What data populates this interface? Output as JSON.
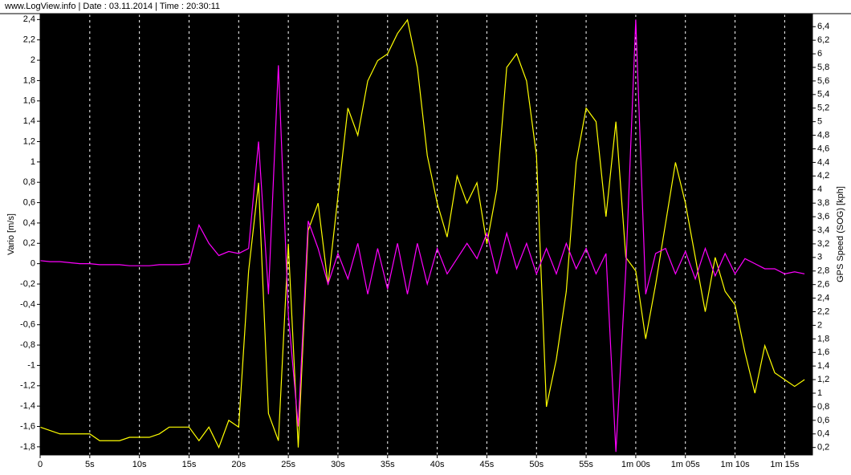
{
  "chart_data": {
    "type": "line",
    "title": "www.LogView.info  |  Date : 03.11.2014  |  Time : 20:30:11",
    "ylabel": "Vario [m/s]",
    "y2label": "GPS Speed (SOG) [kph]",
    "grid": true,
    "x": [
      0,
      1,
      2,
      3,
      4,
      5,
      6,
      7,
      8,
      9,
      10,
      11,
      12,
      13,
      14,
      15,
      16,
      17,
      18,
      19,
      20,
      21,
      22,
      23,
      24,
      25,
      26,
      27,
      28,
      29,
      30,
      31,
      32,
      33,
      34,
      35,
      36,
      37,
      38,
      39,
      40,
      41,
      42,
      43,
      44,
      45,
      46,
      47,
      48,
      49,
      50,
      51,
      52,
      53,
      54,
      55,
      56,
      57,
      58,
      59,
      60,
      61,
      62,
      63,
      64,
      65,
      66,
      67,
      68,
      69,
      70,
      71,
      72,
      73,
      74,
      75,
      76,
      77
    ],
    "xlim": [
      0,
      77.8
    ],
    "xticks": [
      0,
      {
        "value": 5,
        "label": "5s"
      },
      {
        "value": 10,
        "label": "10s"
      },
      {
        "value": 15,
        "label": "15s"
      },
      {
        "value": 20,
        "label": "20s"
      },
      {
        "value": 25,
        "label": "25s"
      },
      {
        "value": 30,
        "label": "30s"
      },
      {
        "value": 35,
        "label": "35s"
      },
      {
        "value": 40,
        "label": "40s"
      },
      {
        "value": 45,
        "label": "45s"
      },
      {
        "value": 50,
        "label": "50s"
      },
      {
        "value": 55,
        "label": "55s"
      },
      {
        "value": 60,
        "label": "1m 00s"
      },
      {
        "value": 65,
        "label": "1m 05s"
      },
      {
        "value": 70,
        "label": "1m 10s"
      },
      {
        "value": 75,
        "label": "1m 15s"
      }
    ],
    "ylim": [
      -1.88,
      2.45
    ],
    "yticks": [
      {
        "value": 2.4,
        "label": "2,4"
      },
      {
        "value": 2.2,
        "label": "2,2"
      },
      2,
      {
        "value": 1.8,
        "label": "1,8"
      },
      {
        "value": 1.6,
        "label": "1,6"
      },
      {
        "value": 1.4,
        "label": "1,4"
      },
      {
        "value": 1.2,
        "label": "1,2"
      },
      1,
      {
        "value": 0.8,
        "label": "0,8"
      },
      {
        "value": 0.6,
        "label": "0,6"
      },
      {
        "value": 0.4,
        "label": "0,4"
      },
      {
        "value": 0.2,
        "label": "0,2"
      },
      0,
      {
        "value": -0.2,
        "label": "-0,2"
      },
      {
        "value": -0.4,
        "label": "-0,4"
      },
      {
        "value": -0.6,
        "label": "-0,6"
      },
      {
        "value": -0.8,
        "label": "-0,8"
      },
      -1,
      {
        "value": -1.2,
        "label": "-1,2"
      },
      {
        "value": -1.4,
        "label": "-1,4"
      },
      {
        "value": -1.6,
        "label": "-1,6"
      },
      {
        "value": -1.8,
        "label": "-1,8"
      }
    ],
    "y2lim": [
      0.09,
      6.58
    ],
    "y2ticks": [
      {
        "value": 6.4,
        "label": "6,4"
      },
      {
        "value": 6.2,
        "label": "6,2"
      },
      6,
      {
        "value": 5.8,
        "label": "5,8"
      },
      {
        "value": 5.6,
        "label": "5,6"
      },
      {
        "value": 5.4,
        "label": "5,4"
      },
      {
        "value": 5.2,
        "label": "5,2"
      },
      5,
      {
        "value": 4.8,
        "label": "4,8"
      },
      {
        "value": 4.6,
        "label": "4,6"
      },
      {
        "value": 4.4,
        "label": "4,4"
      },
      {
        "value": 4.2,
        "label": "4,2"
      },
      4,
      {
        "value": 3.8,
        "label": "3,8"
      },
      {
        "value": 3.6,
        "label": "3,6"
      },
      {
        "value": 3.4,
        "label": "3,4"
      },
      {
        "value": 3.2,
        "label": "3,2"
      },
      3,
      {
        "value": 2.8,
        "label": "2,8"
      },
      {
        "value": 2.6,
        "label": "2,6"
      },
      {
        "value": 2.4,
        "label": "2,4"
      },
      {
        "value": 2.2,
        "label": "2,2"
      },
      2,
      {
        "value": 1.8,
        "label": "1,8"
      },
      {
        "value": 1.6,
        "label": "1,6"
      },
      {
        "value": 1.4,
        "label": "1,4"
      },
      {
        "value": 1.2,
        "label": "1,2"
      },
      1,
      {
        "value": 0.8,
        "label": "0,8"
      },
      {
        "value": 0.6,
        "label": "0,6"
      },
      {
        "value": 0.4,
        "label": "0,4"
      },
      {
        "value": 0.2,
        "label": "0,2"
      }
    ],
    "series": [
      {
        "color": "#ffff00",
        "axis": "y2",
        "values": [
          0.5,
          0.45,
          0.4,
          0.4,
          0.4,
          0.4,
          0.3,
          0.3,
          0.3,
          0.35,
          0.35,
          0.35,
          0.4,
          0.5,
          0.5,
          0.5,
          0.3,
          0.5,
          0.2,
          0.6,
          0.5,
          2.8,
          4.1,
          0.7,
          0.3,
          3.2,
          0.2,
          3.4,
          3.8,
          2.6,
          3.9,
          5.2,
          4.8,
          5.6,
          5.9,
          6.0,
          6.3,
          6.5,
          5.8,
          4.5,
          3.8,
          3.3,
          4.2,
          3.8,
          4.1,
          3.2,
          4.0,
          5.8,
          6.0,
          5.6,
          4.5,
          0.8,
          1.5,
          2.5,
          4.4,
          5.2,
          5.0,
          3.6,
          5.0,
          3.0,
          2.8,
          1.8,
          2.6,
          3.5,
          4.4,
          3.8,
          3.0,
          2.2,
          3.0,
          2.5,
          2.3,
          1.6,
          1.0,
          1.7,
          1.3,
          1.2,
          1.1,
          1.2
        ]
      },
      {
        "color": "#ff00ff",
        "axis": "y",
        "values": [
          0.03,
          0.02,
          0.02,
          0.01,
          0.0,
          0.0,
          -0.01,
          -0.01,
          -0.01,
          -0.02,
          -0.02,
          -0.02,
          -0.01,
          -0.01,
          -0.01,
          0.0,
          0.38,
          0.2,
          0.08,
          0.12,
          0.1,
          0.15,
          1.2,
          -0.3,
          1.95,
          -0.5,
          -1.6,
          0.42,
          0.15,
          -0.2,
          0.1,
          -0.15,
          0.2,
          -0.3,
          0.15,
          -0.25,
          0.2,
          -0.3,
          0.2,
          -0.2,
          0.15,
          -0.1,
          0.05,
          0.2,
          0.05,
          0.3,
          -0.1,
          0.3,
          -0.05,
          0.2,
          -0.1,
          0.15,
          -0.1,
          0.2,
          -0.05,
          0.15,
          -0.1,
          0.1,
          -1.85,
          -0.05,
          2.4,
          -0.3,
          0.1,
          0.15,
          -0.1,
          0.12,
          -0.15,
          0.15,
          -0.12,
          0.1,
          -0.1,
          0.05,
          0.0,
          -0.05,
          -0.05,
          -0.1,
          -0.08,
          -0.1
        ]
      }
    ]
  }
}
